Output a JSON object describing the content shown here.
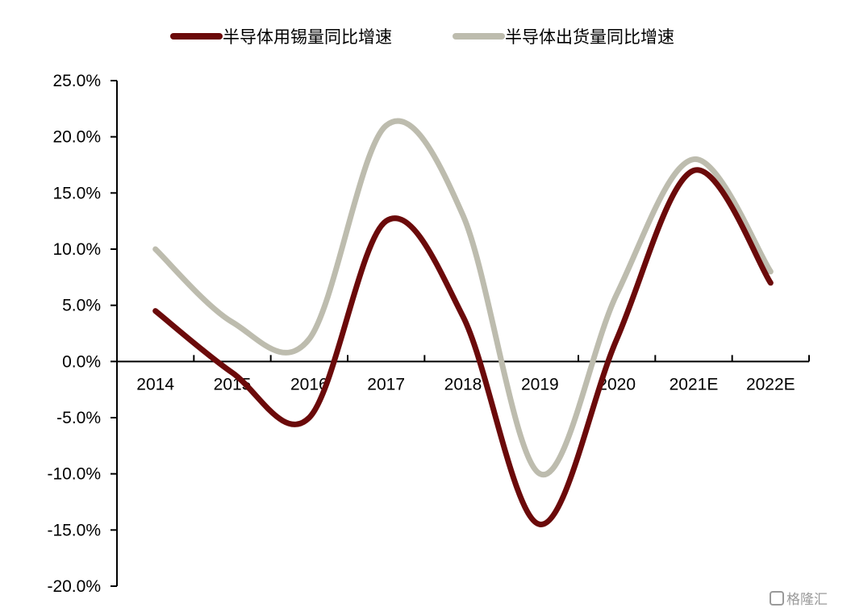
{
  "chart_data": {
    "type": "line",
    "smooth": true,
    "categories": [
      "2014",
      "2015",
      "2016",
      "2017",
      "2018",
      "2019",
      "2020",
      "2021E",
      "2022E"
    ],
    "series": [
      {
        "name": "半导体用锡量同比增速",
        "color": "#6b0a0a",
        "values": [
          4.5,
          -1.0,
          -5.0,
          12.5,
          4.0,
          -14.5,
          2.0,
          17.0,
          7.0
        ]
      },
      {
        "name": "半导体出货量同比增速",
        "color": "#bdbcae",
        "values": [
          10.0,
          3.5,
          2.0,
          21.0,
          13.0,
          -10.0,
          6.0,
          18.0,
          8.0
        ]
      }
    ],
    "ylim": [
      -20,
      25
    ],
    "yticks": [
      "-20.0%",
      "-15.0%",
      "-10.0%",
      "-5.0%",
      "0.0%",
      "5.0%",
      "10.0%",
      "15.0%",
      "20.0%",
      "25.0%"
    ],
    "title": "",
    "xlabel": "",
    "ylabel": "",
    "legend_position": "top",
    "grid": false
  },
  "watermark": "格隆汇"
}
